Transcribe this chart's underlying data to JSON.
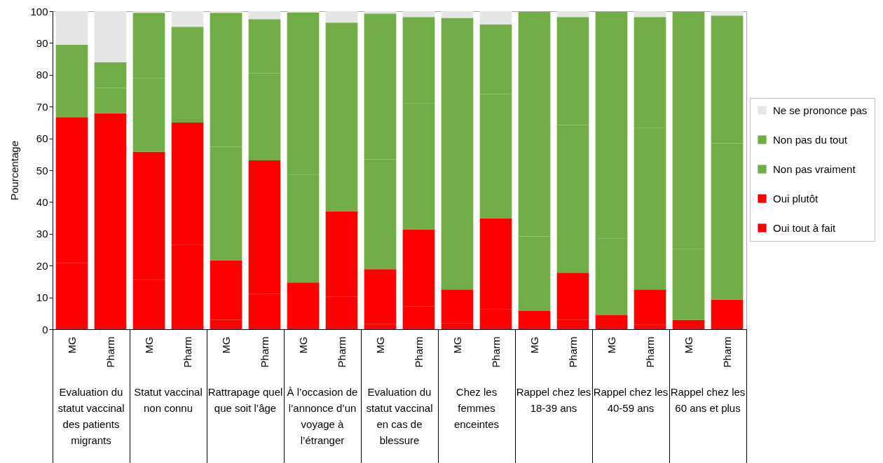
{
  "chart_data": {
    "type": "bar",
    "stacked": true,
    "ylabel": "Pourcentage",
    "categories": [
      "MG",
      "Pharm",
      "MG",
      "Pharm",
      "MG",
      "Pharm",
      "MG",
      "Pharm",
      "MG",
      "Pharm",
      "MG",
      "Pharm",
      "MG",
      "Pharm",
      "MG",
      "Pharm",
      "MG",
      "Pharm"
    ],
    "annotations": [
      "Evaluation du statut vaccinal des patients migrants",
      "Statut vaccinal non connu",
      "Rattrapage quel que soit l’âge",
      "À l’occasion de l’annonce d’un voyage à l’étranger",
      "Evaluation du statut vaccinal en cas de blessure",
      "Chez les femmes enceintes",
      "Rappel chez les 18-39 ans",
      "Rappel chez les 40-59 ans",
      "Rappel chez les 60 ans et plus"
    ],
    "series": [
      {
        "name": "Oui tout à fait",
        "color": "#ff0000",
        "values": [
          20.8,
          31.7,
          15.5,
          26.5,
          3,
          11.2,
          2.4,
          10.3,
          1.7,
          7.2,
          1.9,
          6.2,
          1.1,
          2.9,
          1.3,
          1.5,
          1.3,
          2
        ]
      },
      {
        "name": "Oui plutôt",
        "color": "#ff0000",
        "values": [
          45.9,
          36.2,
          40.3,
          38.5,
          18.7,
          41.9,
          12.3,
          26.8,
          17.2,
          24.1,
          10.6,
          28.7,
          4.6,
          14.9,
          3.1,
          11,
          1.6,
          7.3
        ]
      },
      {
        "name": "Non pas vraiment",
        "color": "#70ad47",
        "values": [
          13.5,
          8,
          23.2,
          17.8,
          35.7,
          27.4,
          33.9,
          40,
          34.5,
          39.8,
          32.9,
          39,
          23.5,
          46.4,
          24.2,
          50.9,
          22.4,
          49.2
        ]
      },
      {
        "name": "Non pas du tout",
        "color": "#70ad47",
        "values": [
          9.3,
          8.1,
          20.5,
          12.3,
          42.1,
          17,
          51,
          19.3,
          45.9,
          27.1,
          52.5,
          21.9,
          70.6,
          34,
          71.2,
          34.8,
          74.5,
          40.1
        ]
      },
      {
        "name": "Ne se prononce pas",
        "color": "#e6e6e6",
        "values": [
          10.5,
          16,
          0.5,
          4.9,
          0.5,
          2.5,
          0.4,
          3.6,
          0.7,
          1.8,
          2.1,
          4.2,
          null,
          1.8,
          null,
          1.8,
          null,
          1.4
        ]
      }
    ],
    "ylim": [
      0,
      100
    ],
    "yticks": [
      0,
      10,
      20,
      30,
      40,
      50,
      60,
      70,
      80,
      90,
      100
    ],
    "legend": "right"
  }
}
